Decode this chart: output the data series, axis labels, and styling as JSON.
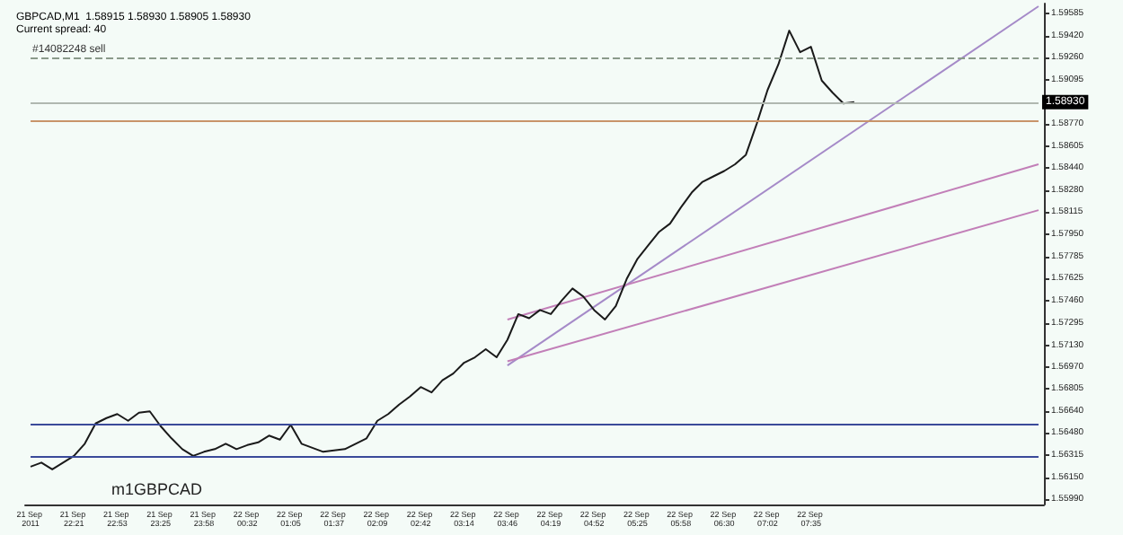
{
  "chart_data": {
    "type": "line",
    "title": "GBPCAD,M1  1.58915 1.58930 1.58905 1.58930",
    "subtitle": "Current spread: 40",
    "annotations": [
      "m1GBPCAD"
    ],
    "categories": [
      "21 Sep 2011",
      null,
      null,
      null,
      "21 Sep 22:21",
      null,
      null,
      null,
      "21 Sep 22:53",
      null,
      null,
      null,
      "21 Sep 23:25",
      null,
      null,
      null,
      "21 Sep 23:58",
      null,
      null,
      null,
      "22 Sep 00:32",
      null,
      null,
      null,
      "22 Sep 01:05",
      null,
      null,
      null,
      "22 Sep 01:37",
      null,
      null,
      null,
      "22 Sep 02:09",
      null,
      null,
      null,
      "22 Sep 02:42",
      null,
      null,
      null,
      "22 Sep 03:14",
      null,
      null,
      null,
      "22 Sep 03:46",
      null,
      null,
      null,
      "22 Sep 04:19",
      null,
      null,
      null,
      "22 Sep 04:52",
      null,
      null,
      null,
      "22 Sep 05:25",
      null,
      null,
      null,
      "22 Sep 05:58",
      null,
      null,
      null,
      "22 Sep 06:30",
      null,
      null,
      null,
      "22 Sep 07:02",
      null,
      null,
      null,
      "22 Sep 07:35",
      null,
      null,
      null,
      null,
      null,
      null,
      null,
      null,
      null,
      null,
      null,
      null,
      null,
      null,
      null,
      null,
      null,
      null,
      null,
      null,
      null
    ],
    "series": [
      {
        "color": "#1a1a1a",
        "values": [
          1.5623,
          1.5626,
          1.5621,
          1.5626,
          1.5631,
          1.564,
          1.5655,
          1.5659,
          1.5662,
          1.5657,
          1.5663,
          1.5664,
          1.5653,
          1.5644,
          1.5636,
          1.5631,
          1.5634,
          1.5636,
          1.564,
          1.5636,
          1.5639,
          1.5641,
          1.5646,
          1.5643,
          1.5654,
          1.564,
          1.5637,
          1.5634,
          1.5635,
          1.5636,
          1.564,
          1.5644,
          1.5657,
          1.5662,
          1.5669,
          1.5675,
          1.5682,
          1.5678,
          1.5687,
          1.5692,
          1.57,
          1.5704,
          1.571,
          1.5704,
          1.5717,
          1.5736,
          1.5733,
          1.5739,
          1.5736,
          1.5746,
          1.5755,
          1.5749,
          1.5739,
          1.5732,
          1.5742,
          1.5762,
          1.5777,
          1.5787,
          1.5797,
          1.5803,
          1.5815,
          1.5826,
          1.5834,
          1.5838,
          1.5842,
          1.5847,
          1.5854,
          1.5877,
          1.5902,
          1.5921,
          1.5946,
          1.593,
          1.5934,
          1.5909,
          1.59,
          1.5892,
          1.5893,
          null,
          null,
          null,
          null,
          null,
          null,
          null,
          null,
          null,
          null,
          null,
          null,
          null,
          null,
          null,
          null,
          null
        ]
      },
      {
        "color": "#a58ac8",
        "values": [
          null,
          null,
          null,
          null,
          null,
          null,
          null,
          null,
          null,
          null,
          null,
          null,
          null,
          null,
          null,
          null,
          null,
          null,
          null,
          null,
          null,
          null,
          null,
          null,
          null,
          null,
          null,
          null,
          null,
          null,
          null,
          null,
          null,
          null,
          null,
          null,
          null,
          null,
          null,
          null,
          null,
          null,
          null,
          null,
          1.5698,
          null,
          null,
          null,
          null,
          null,
          null,
          null,
          null,
          null,
          null,
          null,
          null,
          null,
          null,
          null,
          null,
          null,
          null,
          null,
          null,
          null,
          null,
          null,
          null,
          null,
          null,
          null,
          null,
          null,
          null,
          null,
          null,
          null,
          null,
          null,
          null,
          null,
          null,
          null,
          null,
          null,
          null,
          null,
          null,
          null,
          null,
          null,
          null,
          1.5964
        ]
      },
      {
        "color": "#c27fb8",
        "values": [
          null,
          null,
          null,
          null,
          null,
          null,
          null,
          null,
          null,
          null,
          null,
          null,
          null,
          null,
          null,
          null,
          null,
          null,
          null,
          null,
          null,
          null,
          null,
          null,
          null,
          null,
          null,
          null,
          null,
          null,
          null,
          null,
          null,
          null,
          null,
          null,
          null,
          null,
          null,
          null,
          null,
          null,
          null,
          null,
          1.5732,
          null,
          null,
          null,
          null,
          null,
          null,
          null,
          null,
          null,
          null,
          null,
          null,
          null,
          null,
          null,
          null,
          null,
          null,
          null,
          null,
          null,
          null,
          null,
          null,
          null,
          null,
          null,
          null,
          null,
          null,
          null,
          null,
          null,
          null,
          null,
          null,
          null,
          null,
          null,
          null,
          null,
          null,
          null,
          null,
          null,
          null,
          null,
          null,
          1.5847
        ]
      },
      {
        "color": "#c27fb8",
        "values": [
          null,
          null,
          null,
          null,
          null,
          null,
          null,
          null,
          null,
          null,
          null,
          null,
          null,
          null,
          null,
          null,
          null,
          null,
          null,
          null,
          null,
          null,
          null,
          null,
          null,
          null,
          null,
          null,
          null,
          null,
          null,
          null,
          null,
          null,
          null,
          null,
          null,
          null,
          null,
          null,
          null,
          null,
          null,
          null,
          1.5701,
          null,
          null,
          null,
          null,
          null,
          null,
          null,
          null,
          null,
          null,
          null,
          null,
          null,
          null,
          null,
          null,
          null,
          null,
          null,
          null,
          null,
          null,
          null,
          null,
          null,
          null,
          null,
          null,
          null,
          null,
          null,
          null,
          null,
          null,
          null,
          null,
          null,
          null,
          null,
          null,
          null,
          null,
          null,
          null,
          null,
          null,
          null,
          null,
          1.5813
        ]
      }
    ],
    "ylim": [
      1.5595,
      1.5966
    ],
    "yticks": [
      1.59585,
      {
        "value": 1.5942,
        "label": "1.59420"
      },
      {
        "value": 1.5926,
        "label": "1.59260"
      },
      1.59095,
      {
        "value": 1.5877,
        "label": "1.58770"
      },
      1.58605,
      {
        "value": 1.5844,
        "label": "1.58440"
      },
      {
        "value": 1.5828,
        "label": "1.58280"
      },
      1.58115,
      {
        "value": 1.5795,
        "label": "1.57950"
      },
      1.57785,
      1.57625,
      {
        "value": 1.5746,
        "label": "1.57460"
      },
      1.57295,
      {
        "value": 1.5713,
        "label": "1.57130"
      },
      {
        "value": 1.5697,
        "label": "1.56970"
      },
      1.56805,
      {
        "value": 1.5664,
        "label": "1.56640"
      },
      {
        "value": 1.5648,
        "label": "1.56480"
      },
      1.56315,
      {
        "value": 1.5615,
        "label": "1.56150"
      },
      {
        "value": 1.5599,
        "label": "1.55990"
      }
    ],
    "ref_lines": [
      {
        "axis": "y",
        "value": 1.5926,
        "label": "#14082248 sell",
        "color": "#8a9a8a",
        "line_style": "dashed"
      },
      {
        "axis": "y",
        "value": 1.5893,
        "label": "1.58930",
        "color": "#b0b8b0",
        "line_style": "solid"
      },
      {
        "axis": "y",
        "value": 1.5879,
        "color": "#c8946a",
        "line_style": "solid"
      },
      {
        "axis": "y",
        "value": 1.5654,
        "color": "#3a4a9a",
        "line_style": "solid"
      },
      {
        "axis": "y",
        "value": 1.5631,
        "color": "#3a4a9a",
        "line_style": "solid"
      }
    ],
    "grid": false,
    "marker": "none",
    "line_style": "solid"
  }
}
